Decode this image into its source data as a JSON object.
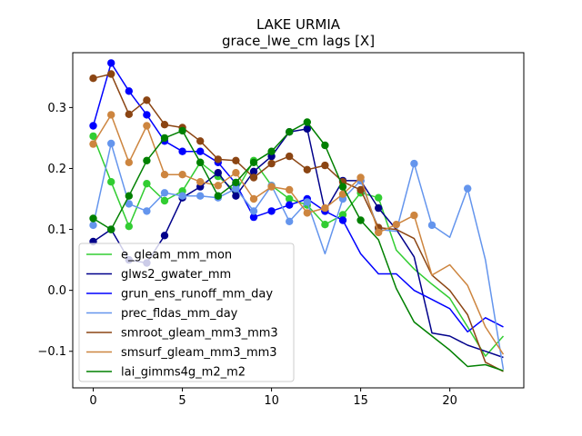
{
  "chart_data": {
    "type": "line",
    "title": "LAKE URMIA",
    "subtitle": "grace_lwe_cm lags [X]",
    "xlabel": "",
    "ylabel": "",
    "xlim": [
      -1.15,
      24.15
    ],
    "ylim": [
      -0.16,
      0.39
    ],
    "xticks": [
      0,
      5,
      10,
      15,
      20
    ],
    "yticks": [
      -0.1,
      0.0,
      0.1,
      0.2,
      0.3
    ],
    "xtick_labels": [
      "0",
      "5",
      "10",
      "15",
      "20"
    ],
    "ytick_labels": [
      "−0.1",
      "0.0",
      "0.1",
      "0.2",
      "0.3"
    ],
    "grid": false,
    "legend_position": "lower-left",
    "x": [
      0,
      1,
      2,
      3,
      4,
      5,
      6,
      7,
      8,
      9,
      10,
      11,
      12,
      13,
      14,
      15,
      16,
      17,
      18,
      19,
      20,
      21,
      22,
      23
    ],
    "series": [
      {
        "name": "e_gleam_mm_mon",
        "color": "#32cd32",
        "values": [
          0.253,
          0.178,
          0.105,
          0.175,
          0.147,
          0.163,
          0.21,
          0.187,
          0.162,
          0.213,
          0.172,
          0.15,
          0.14,
          0.108,
          0.124,
          0.16,
          0.152,
          0.066,
          0.035,
          0.01,
          -0.013,
          -0.06,
          -0.108,
          -0.075
        ],
        "marker_points": [
          0,
          1,
          2,
          3,
          4,
          5,
          6,
          7,
          8,
          9,
          10,
          11,
          12,
          13,
          14,
          15,
          16
        ]
      },
      {
        "name": "glws2_gwater_mm",
        "color": "#00008b",
        "values": [
          0.08,
          0.1,
          0.05,
          0.045,
          0.09,
          0.152,
          0.17,
          0.193,
          0.155,
          0.195,
          0.22,
          0.26,
          0.265,
          0.13,
          0.18,
          0.18,
          0.135,
          0.1,
          0.055,
          -0.07,
          -0.075,
          -0.09,
          -0.1,
          -0.11
        ],
        "marker_points": [
          0,
          1,
          2,
          3,
          4,
          5,
          6,
          7,
          8,
          9,
          10,
          11,
          12,
          13,
          14,
          15,
          16
        ]
      },
      {
        "name": "grun_ens_runoff_mm_day",
        "color": "#0000ff",
        "values": [
          0.27,
          0.373,
          0.327,
          0.288,
          0.245,
          0.228,
          0.228,
          0.21,
          0.175,
          0.12,
          0.13,
          0.14,
          0.15,
          0.13,
          0.115,
          0.06,
          0.027,
          0.027,
          0.0,
          -0.015,
          -0.03,
          -0.068,
          -0.045,
          -0.06
        ],
        "marker_points": [
          0,
          1,
          2,
          3,
          4,
          5,
          6,
          7,
          8,
          9,
          10,
          11,
          12,
          13,
          14
        ]
      },
      {
        "name": "prec_fldas_mm_day",
        "color": "#6495ed",
        "values": [
          0.107,
          0.241,
          0.142,
          0.13,
          0.16,
          0.155,
          0.155,
          0.152,
          0.167,
          0.13,
          0.172,
          0.113,
          0.145,
          0.06,
          0.15,
          0.18,
          0.1,
          0.097,
          0.208,
          0.107,
          0.087,
          0.167,
          0.05,
          -0.13
        ],
        "marker_points": [
          0,
          1,
          2,
          3,
          4,
          5,
          6,
          7,
          8,
          9,
          10,
          11,
          12,
          14,
          15,
          16,
          18,
          19,
          21
        ]
      },
      {
        "name": "smroot_gleam_mm3_mm3",
        "color": "#8b4513",
        "values": [
          0.348,
          0.355,
          0.289,
          0.312,
          0.272,
          0.267,
          0.245,
          0.215,
          0.213,
          0.185,
          0.208,
          0.22,
          0.198,
          0.205,
          0.178,
          0.165,
          0.103,
          0.1,
          0.085,
          0.025,
          0.0,
          -0.04,
          -0.118,
          -0.133
        ],
        "marker_points": [
          0,
          1,
          2,
          3,
          4,
          5,
          6,
          7,
          8,
          9,
          10,
          11,
          12,
          13,
          14,
          15,
          16
        ]
      },
      {
        "name": "smsurf_gleam_mm3_mm3",
        "color": "#cd853f",
        "values": [
          0.24,
          0.288,
          0.21,
          0.27,
          0.19,
          0.19,
          0.178,
          0.172,
          0.193,
          0.15,
          0.17,
          0.165,
          0.127,
          0.135,
          0.158,
          0.185,
          0.095,
          0.108,
          0.123,
          0.025,
          0.042,
          0.008,
          -0.06,
          -0.105
        ],
        "marker_points": [
          0,
          1,
          2,
          3,
          4,
          5,
          6,
          7,
          8,
          9,
          10,
          11,
          12,
          13,
          14,
          15,
          16,
          17,
          18
        ]
      },
      {
        "name": "lai_gimms4g_m2_m2",
        "color": "#008000",
        "values": [
          0.118,
          0.1,
          0.155,
          0.213,
          0.25,
          0.262,
          0.21,
          0.155,
          0.177,
          0.21,
          0.228,
          0.26,
          0.276,
          0.238,
          0.17,
          0.115,
          0.083,
          0.003,
          -0.052,
          -0.075,
          -0.098,
          -0.125,
          -0.122,
          -0.132
        ],
        "marker_points": [
          0,
          1,
          2,
          3,
          4,
          5,
          6,
          7,
          8,
          9,
          10,
          11,
          12,
          13,
          14,
          15
        ]
      }
    ]
  }
}
